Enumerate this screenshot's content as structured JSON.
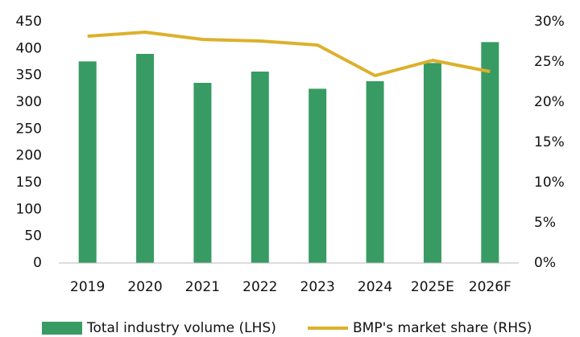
{
  "chart_data": {
    "type": "bar-line",
    "categories": [
      "2019",
      "2020",
      "2021",
      "2022",
      "2023",
      "2024",
      "2025E",
      "2026F"
    ],
    "series": [
      {
        "name": "Total industry volume (LHS)",
        "type": "bar",
        "color": "#389b63",
        "values": [
          376,
          390,
          336,
          357,
          325,
          339,
          373,
          412
        ]
      },
      {
        "name": "BMP's market share (RHS)",
        "type": "line",
        "color": "#dcb12b",
        "axis": "y2",
        "values": [
          28.2,
          28.7,
          27.8,
          27.6,
          27.1,
          23.3,
          25.2,
          23.8
        ]
      }
    ],
    "ylim": [
      0,
      450
    ],
    "yticks": [
      0,
      50,
      100,
      150,
      200,
      250,
      300,
      350,
      400,
      450
    ],
    "y2lim": [
      0,
      30
    ],
    "y2ticks": [
      {
        "value": 0,
        "label": "0%"
      },
      {
        "value": 5,
        "label": "5%"
      },
      {
        "value": 10,
        "label": "10%"
      },
      {
        "value": 15,
        "label": "15%"
      },
      {
        "value": 20,
        "label": "20%"
      },
      {
        "value": 25,
        "label": "25%"
      },
      {
        "value": 30,
        "label": "30%"
      }
    ],
    "grid": false,
    "legend": "bottom"
  }
}
